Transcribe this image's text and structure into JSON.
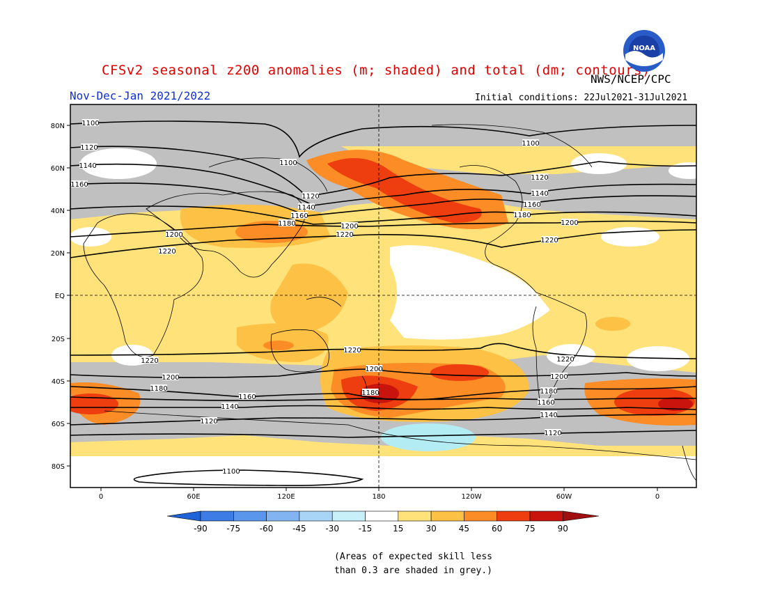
{
  "header": {
    "title": "CFSv2 seasonal z200 anomalies (m; shaded) and total (dm; contours)",
    "agency": "NWS/NCEP/CPC",
    "period": "Nov-Dec-Jan 2021/2022",
    "initial_conditions": "Initial conditions: 22Jul2021-31Jul2021",
    "logo_icon": "noaa-logo-icon",
    "logo_text": "NOAA"
  },
  "map": {
    "lat_labels": [
      "80N",
      "60N",
      "40N",
      "20N",
      "EQ",
      "20S",
      "40S",
      "60S",
      "80S"
    ],
    "lon_labels": [
      "0",
      "60E",
      "120E",
      "180",
      "120W",
      "60W",
      "0"
    ],
    "contour_labels": {
      "c1100": "1100",
      "c1120": "1120",
      "c1140": "1140",
      "c1160": "1160",
      "c1180": "1180",
      "c1200": "1200",
      "c1220": "1220"
    },
    "colors": {
      "skill_grey": "#c0c0c0",
      "pos_15_30": "#ffe27a",
      "pos_30_45": "#fdc245",
      "pos_45_60": "#fb8c26",
      "pos_60_75": "#ee3d0e",
      "pos_75_90": "#c8140c",
      "neg_15_30": "#b4ecf4"
    }
  },
  "colorbar": {
    "ticks": [
      "-90",
      "-75",
      "-60",
      "-45",
      "-30",
      "-15",
      "15",
      "30",
      "45",
      "60",
      "75",
      "90"
    ],
    "colors": [
      "#1e64d8",
      "#3c7ce4",
      "#5a96ec",
      "#82b4f2",
      "#a8d4f6",
      "#c8f0f8",
      "#ffffff",
      "#ffe27a",
      "#fdc245",
      "#fb8c26",
      "#ee3d0e",
      "#c8140c",
      "#a01010"
    ]
  },
  "notes": {
    "line1": "(Areas of expected skill less",
    "line2": "than 0.3 are shaded in grey.)"
  }
}
